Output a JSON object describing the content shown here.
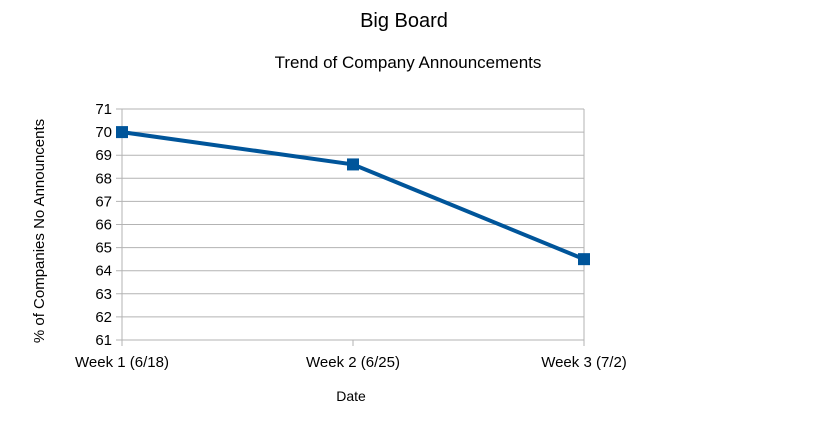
{
  "chart_data": {
    "type": "line",
    "title": "Big Board",
    "subtitle": "Trend of Company Announcements",
    "xlabel": "Date",
    "ylabel": "% of Companies No Announcents",
    "categories": [
      "Week 1 (6/18)",
      "Week 2 (6/25)",
      "Week 3 (7/2)"
    ],
    "series": [
      {
        "values": [
          70.0,
          68.6,
          64.5
        ]
      }
    ],
    "ylim": [
      61,
      71
    ],
    "yticks": [
      "61",
      "62",
      "63",
      "64",
      "65",
      "66",
      "67",
      "68",
      "69",
      "70",
      "71"
    ],
    "grid": true,
    "legend": "none",
    "marker": "square",
    "line_color": "#00559a",
    "grid_color": "#b3b3b3"
  }
}
